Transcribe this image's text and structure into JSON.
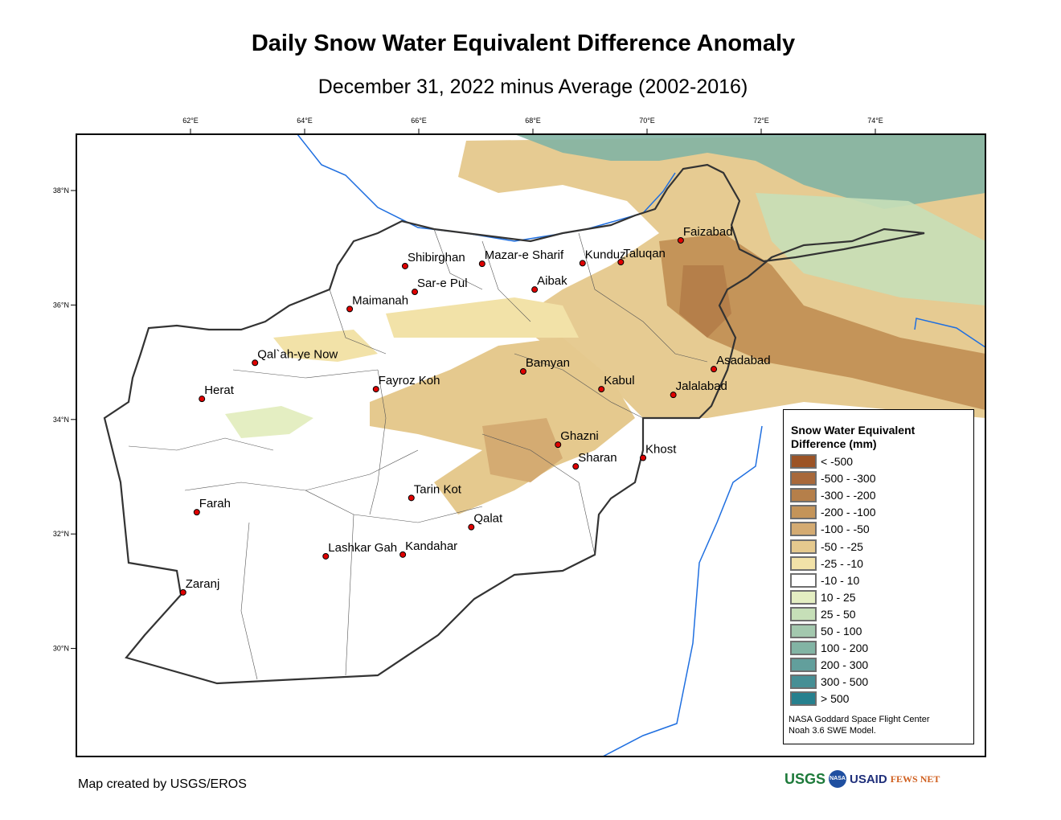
{
  "title": "Daily Snow Water Equivalent Difference Anomaly",
  "subtitle": "December 31, 2022 minus Average (2002-2016)",
  "lon_ticks": [
    "62°E",
    "64°E",
    "66°E",
    "68°E",
    "70°E",
    "72°E",
    "74°E"
  ],
  "lat_ticks": [
    "38°N",
    "36°N",
    "34°N",
    "32°N",
    "30°N"
  ],
  "cities": [
    {
      "name": "Shibirghan",
      "lon": 65.76,
      "lat": 36.68
    },
    {
      "name": "Mazar-e Sharif",
      "lon": 67.11,
      "lat": 36.72
    },
    {
      "name": "Kunduz",
      "lon": 68.87,
      "lat": 36.73
    },
    {
      "name": "Taluqan",
      "lon": 69.54,
      "lat": 36.75
    },
    {
      "name": "Faizabad",
      "lon": 70.59,
      "lat": 37.13
    },
    {
      "name": "Sar-e Pul",
      "lon": 65.93,
      "lat": 36.23
    },
    {
      "name": "Aibak",
      "lon": 68.03,
      "lat": 36.27
    },
    {
      "name": "Maimanah",
      "lon": 64.79,
      "lat": 35.93
    },
    {
      "name": "Qal`ah-ye Now",
      "lon": 63.13,
      "lat": 34.99
    },
    {
      "name": "Bamyan",
      "lon": 67.83,
      "lat": 34.84
    },
    {
      "name": "Asadabad",
      "lon": 71.17,
      "lat": 34.88
    },
    {
      "name": "Herat",
      "lon": 62.2,
      "lat": 34.36
    },
    {
      "name": "Fayroz Koh",
      "lon": 65.25,
      "lat": 34.53
    },
    {
      "name": "Kabul",
      "lon": 69.2,
      "lat": 34.53
    },
    {
      "name": "Jalalabad",
      "lon": 70.46,
      "lat": 34.43
    },
    {
      "name": "Ghazni",
      "lon": 68.44,
      "lat": 33.56
    },
    {
      "name": "Sharan",
      "lon": 68.75,
      "lat": 33.18
    },
    {
      "name": "Khost",
      "lon": 69.93,
      "lat": 33.33
    },
    {
      "name": "Tarin Kot",
      "lon": 65.87,
      "lat": 32.63
    },
    {
      "name": "Farah",
      "lon": 62.11,
      "lat": 32.38
    },
    {
      "name": "Qalat",
      "lon": 66.92,
      "lat": 32.12
    },
    {
      "name": "Lashkar Gah",
      "lon": 64.37,
      "lat": 31.61
    },
    {
      "name": "Kandahar",
      "lon": 65.72,
      "lat": 31.64
    },
    {
      "name": "Zaranj",
      "lon": 61.87,
      "lat": 30.98
    }
  ],
  "legend": {
    "title_line1": "Snow Water Equivalent",
    "title_line2": "Difference (mm)",
    "items": [
      {
        "label": "< -500",
        "color": "#9c5325"
      },
      {
        "label": "-500 - -300",
        "color": "#a8683a"
      },
      {
        "label": "-300 - -200",
        "color": "#b57f4a"
      },
      {
        "label": "-200 - -100",
        "color": "#c49459"
      },
      {
        "label": "-100 - -50",
        "color": "#d4ab72"
      },
      {
        "label": "-50 - -25",
        "color": "#e5c98e"
      },
      {
        "label": "-25 - -10",
        "color": "#f2e2a8"
      },
      {
        "label": "-10 - 10",
        "color": "#ffffff"
      },
      {
        "label": "10 - 25",
        "color": "#e4eec2"
      },
      {
        "label": "25 - 50",
        "color": "#c6dfb8"
      },
      {
        "label": "50 - 100",
        "color": "#a3c8ae"
      },
      {
        "label": "100 - 200",
        "color": "#82b4a4"
      },
      {
        "label": "200 - 300",
        "color": "#629f9c"
      },
      {
        "label": "300 - 500",
        "color": "#468f95"
      },
      {
        "label": "> 500",
        "color": "#26808e"
      }
    ],
    "credit_line1": "NASA Goddard Space Flight Center",
    "credit_line2": "Noah 3.6 SWE Model."
  },
  "footer": {
    "made_by": "Map created by USGS/EROS",
    "logos": [
      "USGS",
      "NASA",
      "USAID",
      "FEWS NET"
    ]
  }
}
